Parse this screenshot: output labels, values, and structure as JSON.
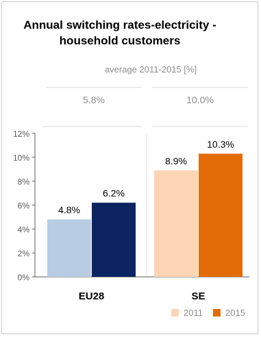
{
  "title_line1": "Annual switching rates-electricity -",
  "title_line2": "household customers",
  "subtitle": "average 2011-2015 [%]",
  "averages": {
    "EU28": "5.8%",
    "SE": "10.0%"
  },
  "colors": {
    "EU28_2011": "#b8cce4",
    "EU28_2015": "#0d2462",
    "SE_2011": "#fcd5b4",
    "SE_2015": "#e36c09"
  },
  "chart_data": {
    "type": "bar",
    "categories": [
      "EU28",
      "SE"
    ],
    "series": [
      {
        "name": "2011",
        "values": [
          4.8,
          8.9
        ]
      },
      {
        "name": "2015",
        "values": [
          6.2,
          10.3
        ]
      }
    ],
    "data_labels": [
      [
        "4.8%",
        "6.2%"
      ],
      [
        "8.9%",
        "10.3%"
      ]
    ],
    "ylim": [
      0,
      12
    ],
    "y_ticks": [
      "0%",
      "2%",
      "4%",
      "6%",
      "8%",
      "10%",
      "12%"
    ],
    "grid": false,
    "legend": {
      "position": "bottom-right",
      "entries": [
        "2011",
        "2015"
      ]
    }
  }
}
